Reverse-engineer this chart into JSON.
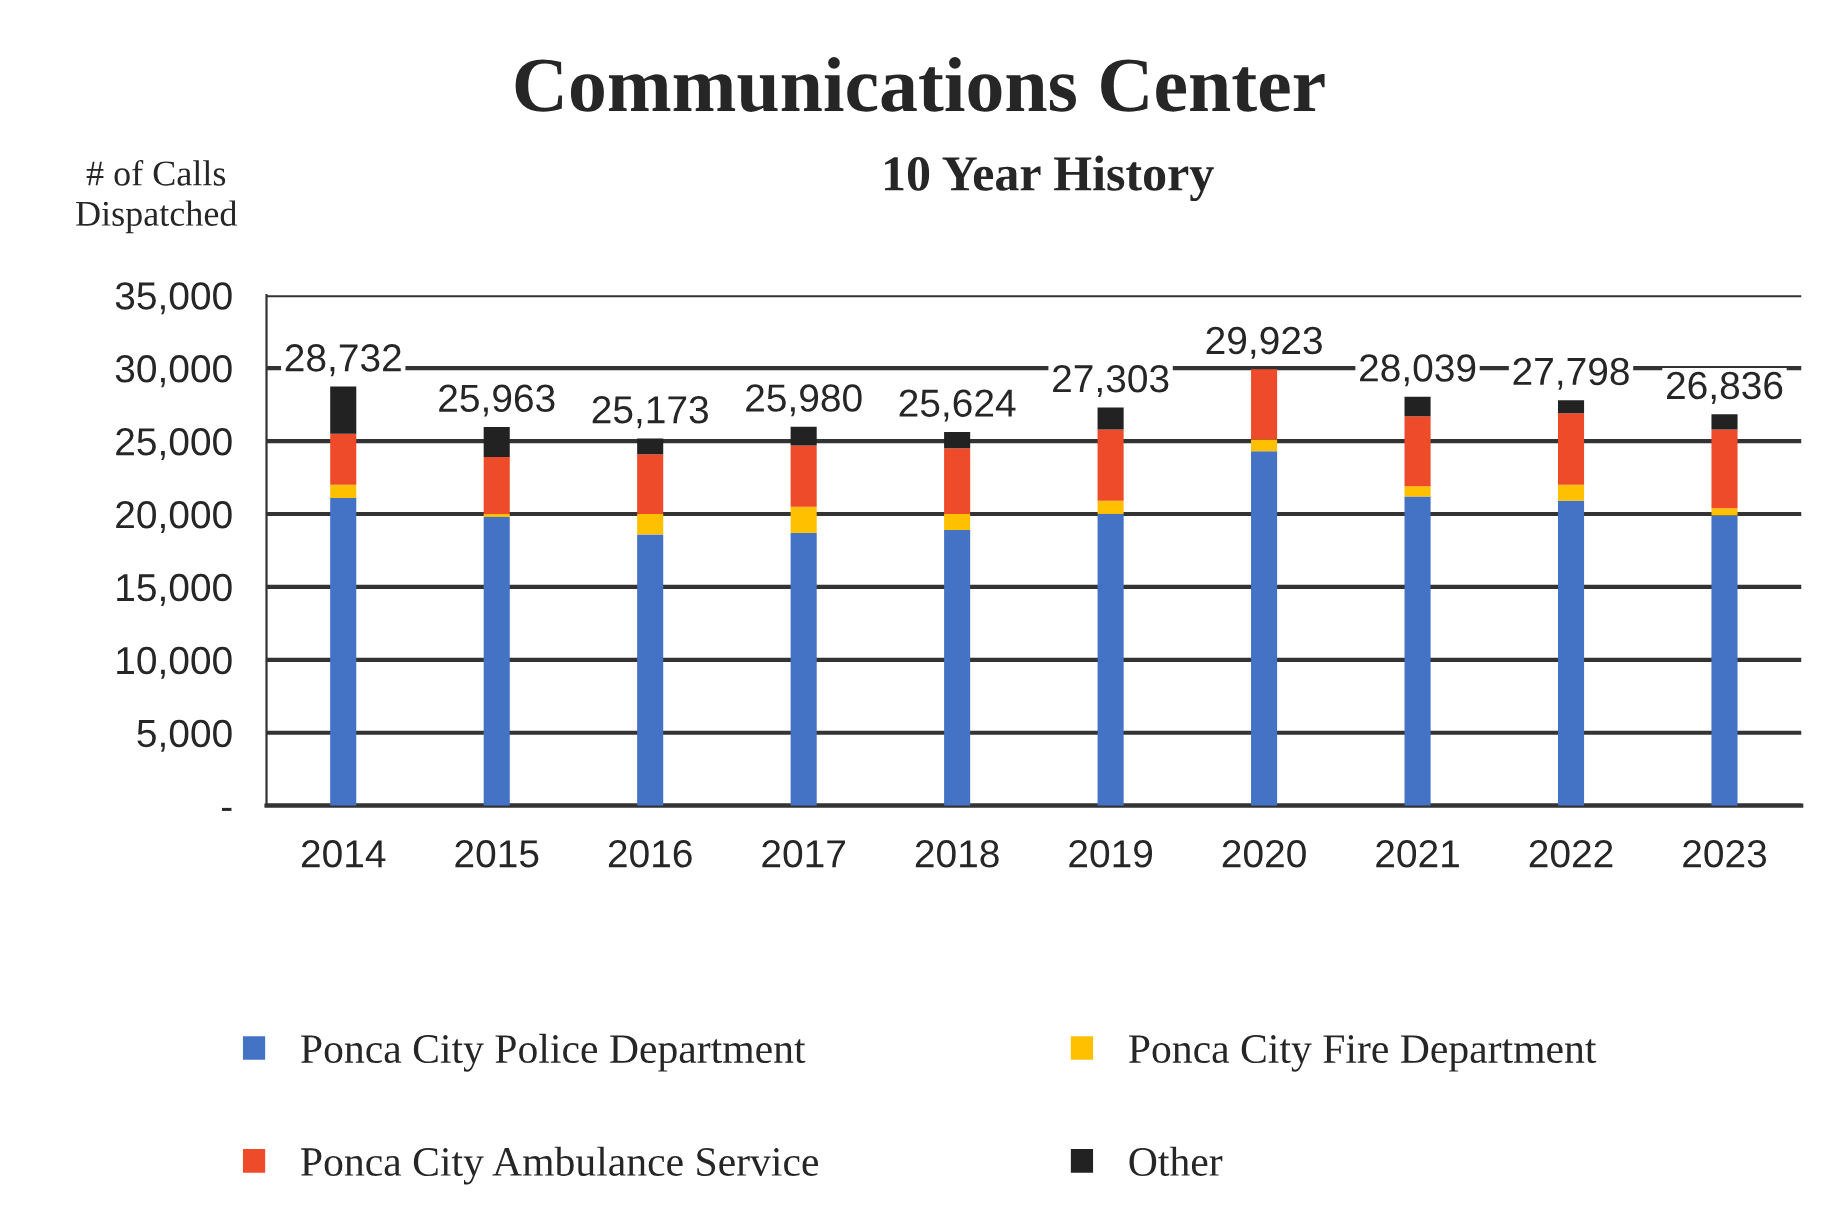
{
  "chart_data": {
    "type": "bar",
    "stacked": true,
    "title": "Communications Center",
    "subtitle": "10 Year History",
    "ylabel": "# of Calls\nDispatched",
    "categories": [
      "2014",
      "2015",
      "2016",
      "2017",
      "2018",
      "2019",
      "2020",
      "2021",
      "2022",
      "2023"
    ],
    "series": [
      {
        "name": "Ponca City Police Department",
        "color": "#4472c4",
        "values": [
          21100,
          19800,
          18600,
          18700,
          18900,
          20000,
          24300,
          21200,
          20900,
          19900
        ]
      },
      {
        "name": "Ponca City Fire Department",
        "color": "#ffc000",
        "values": [
          900,
          200,
          1400,
          1800,
          1100,
          900,
          800,
          700,
          1100,
          500
        ]
      },
      {
        "name": "Ponca City Ambulance Service",
        "color": "#ee4b2b",
        "values": [
          3500,
          3900,
          4100,
          4200,
          4500,
          4900,
          4823,
          4800,
          4900,
          5400
        ]
      },
      {
        "name": "Other",
        "color": "#222222",
        "values": [
          3232,
          2063,
          1073,
          1280,
          1124,
          1503,
          null,
          1339,
          898,
          1036
        ]
      }
    ],
    "totals": [
      "28,732",
      "25,963",
      "25,173",
      "25,980",
      "25,624",
      "27,303",
      "29,923",
      "28,039",
      "27,798",
      "26,836"
    ],
    "ylim": [
      0,
      35000
    ],
    "yticks": [
      {
        "value": 0,
        "label": "-"
      },
      {
        "value": 5000,
        "label": "5,000"
      },
      {
        "value": 10000,
        "label": "10,000"
      },
      {
        "value": 15000,
        "label": "15,000"
      },
      {
        "value": 20000,
        "label": "20,000"
      },
      {
        "value": 25000,
        "label": "25,000"
      },
      {
        "value": 30000,
        "label": "30,000"
      },
      {
        "value": 35000,
        "label": "35,000"
      }
    ],
    "grid": "y",
    "legend": "bottom"
  }
}
